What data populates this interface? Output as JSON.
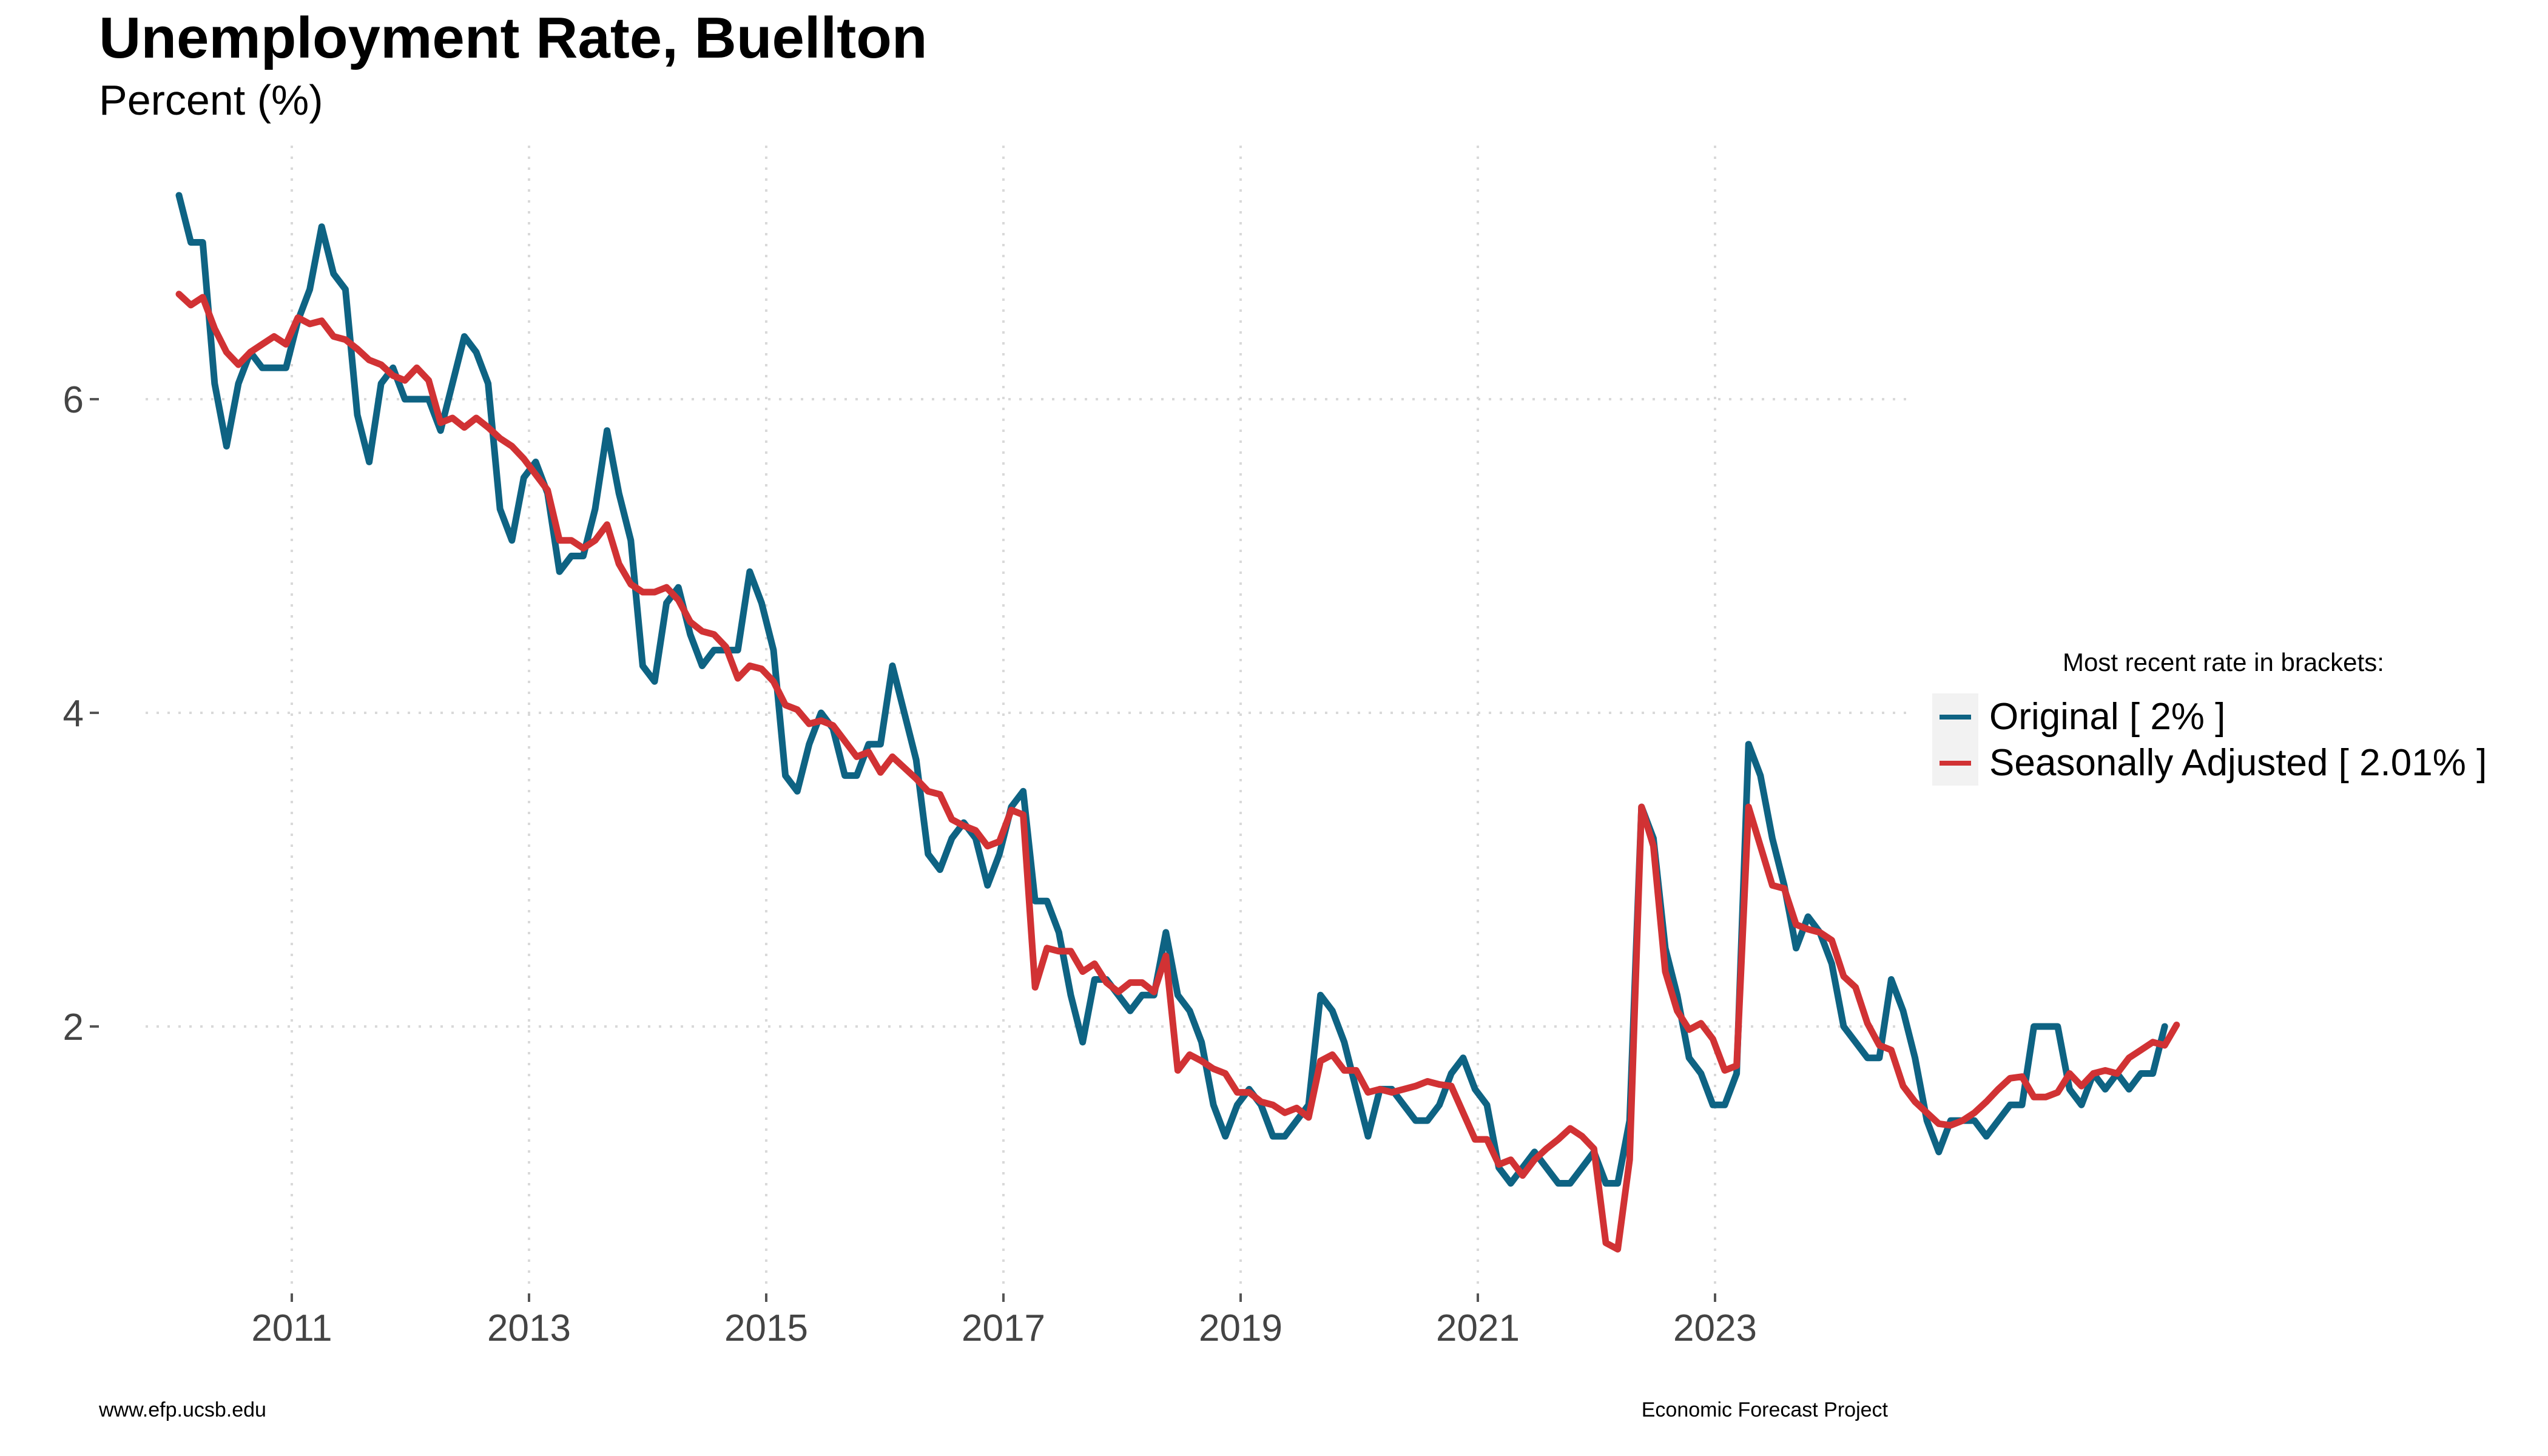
{
  "title": "Unemployment Rate, Buellton",
  "subtitle": "Percent (%)",
  "legend": {
    "title": "Most recent rate in brackets:",
    "items": [
      {
        "label": "Original [ 2% ]",
        "color": "#0e6383"
      },
      {
        "label": "Seasonally Adjusted [ 2.01% ]",
        "color": "#d13234"
      }
    ]
  },
  "footer": {
    "left": "www.efp.ucsb.edu",
    "right": "Economic Forecast Project"
  },
  "chart_data": {
    "type": "line",
    "x_start": "2010-02",
    "x_frequency": "monthly",
    "x_tick_labels": [
      "2011",
      "2013",
      "2015",
      "2017",
      "2019",
      "2021",
      "2023"
    ],
    "y_tick_labels": [
      "2",
      "4",
      "6"
    ],
    "ylim": [
      0.35,
      7.5
    ],
    "grid": "dotted",
    "legend_position": "right",
    "series": [
      {
        "name": "Original",
        "color": "#0e6383",
        "values": [
          7.3,
          7.0,
          7.0,
          6.1,
          5.7,
          6.1,
          6.3,
          6.2,
          6.2,
          6.2,
          6.5,
          6.7,
          7.1,
          6.8,
          6.7,
          5.9,
          5.6,
          6.1,
          6.2,
          6.0,
          6.0,
          6.0,
          5.8,
          6.1,
          6.4,
          6.3,
          6.1,
          5.3,
          5.1,
          5.5,
          5.6,
          5.4,
          4.9,
          5.0,
          5.0,
          5.3,
          5.8,
          5.4,
          5.1,
          4.3,
          4.2,
          4.7,
          4.8,
          4.5,
          4.3,
          4.4,
          4.4,
          4.4,
          4.9,
          4.7,
          4.4,
          3.6,
          3.5,
          3.8,
          4.0,
          3.9,
          3.6,
          3.6,
          3.8,
          3.8,
          4.3,
          4.0,
          3.7,
          3.1,
          3.0,
          3.2,
          3.3,
          3.2,
          2.9,
          3.1,
          3.4,
          3.5,
          2.8,
          2.8,
          2.6,
          2.2,
          1.9,
          2.3,
          2.3,
          2.2,
          2.1,
          2.2,
          2.2,
          2.6,
          2.2,
          2.1,
          1.9,
          1.5,
          1.3,
          1.5,
          1.6,
          1.5,
          1.3,
          1.3,
          1.4,
          1.5,
          2.2,
          2.1,
          1.9,
          1.6,
          1.3,
          1.6,
          1.6,
          1.5,
          1.4,
          1.4,
          1.5,
          1.7,
          1.8,
          1.6,
          1.5,
          1.1,
          1.0,
          1.1,
          1.2,
          1.1,
          1.0,
          1.0,
          1.1,
          1.2,
          1.0,
          1.0,
          1.4,
          3.4,
          3.2,
          2.5,
          2.2,
          1.8,
          1.7,
          1.5,
          1.5,
          1.7,
          3.8,
          3.6,
          3.2,
          2.9,
          2.5,
          2.7,
          2.6,
          2.4,
          2.0,
          1.9,
          1.8,
          1.8,
          2.3,
          2.1,
          1.8,
          1.4,
          1.2,
          1.4,
          1.4,
          1.4,
          1.3,
          1.4,
          1.5,
          1.5,
          2.0,
          2.0,
          2.0,
          1.6,
          1.5,
          1.7,
          1.6,
          1.7,
          1.6,
          1.7,
          1.7,
          2.0
        ]
      },
      {
        "name": "Seasonally Adjusted",
        "color": "#d13234",
        "values": [
          6.67,
          6.6,
          6.65,
          6.45,
          6.3,
          6.22,
          6.3,
          6.35,
          6.4,
          6.35,
          6.52,
          6.48,
          6.5,
          6.4,
          6.38,
          6.32,
          6.25,
          6.22,
          6.15,
          6.12,
          6.2,
          6.12,
          5.85,
          5.88,
          5.82,
          5.88,
          5.82,
          5.75,
          5.7,
          5.62,
          5.52,
          5.42,
          5.1,
          5.1,
          5.05,
          5.1,
          5.2,
          4.95,
          4.82,
          4.77,
          4.77,
          4.8,
          4.72,
          4.58,
          4.52,
          4.5,
          4.42,
          4.22,
          4.3,
          4.28,
          4.2,
          4.05,
          4.02,
          3.93,
          3.95,
          3.92,
          3.82,
          3.72,
          3.75,
          3.62,
          3.72,
          3.65,
          3.58,
          3.5,
          3.48,
          3.32,
          3.28,
          3.25,
          3.15,
          3.18,
          3.38,
          3.35,
          2.25,
          2.5,
          2.48,
          2.48,
          2.35,
          2.4,
          2.28,
          2.22,
          2.28,
          2.28,
          2.22,
          2.45,
          1.72,
          1.82,
          1.78,
          1.73,
          1.7,
          1.58,
          1.58,
          1.52,
          1.5,
          1.45,
          1.48,
          1.42,
          1.78,
          1.82,
          1.72,
          1.72,
          1.58,
          1.6,
          1.58,
          1.6,
          1.62,
          1.65,
          1.63,
          1.62,
          1.45,
          1.28,
          1.28,
          1.12,
          1.15,
          1.05,
          1.15,
          1.22,
          1.28,
          1.35,
          1.3,
          1.22,
          0.62,
          0.58,
          1.15,
          3.4,
          3.15,
          2.35,
          2.1,
          1.98,
          2.02,
          1.92,
          1.72,
          1.75,
          3.4,
          3.15,
          2.9,
          2.88,
          2.65,
          2.62,
          2.6,
          2.55,
          2.32,
          2.25,
          2.02,
          1.88,
          1.85,
          1.62,
          1.52,
          1.45,
          1.38,
          1.37,
          1.4,
          1.45,
          1.52,
          1.6,
          1.67,
          1.68,
          1.55,
          1.55,
          1.58,
          1.7,
          1.62,
          1.7,
          1.72,
          1.7,
          1.8,
          1.85,
          1.9,
          1.88,
          2.01
        ]
      }
    ]
  }
}
